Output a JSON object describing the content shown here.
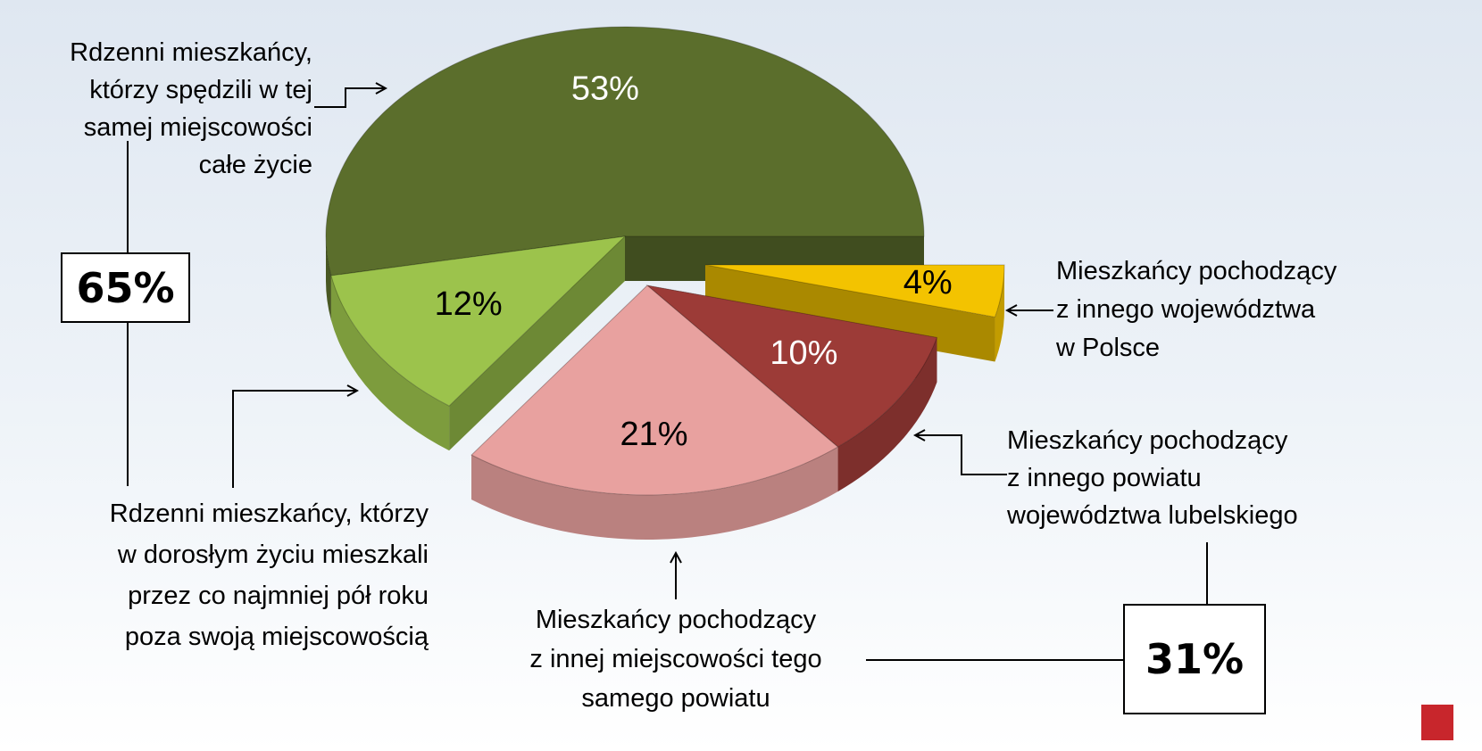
{
  "chart_data": {
    "type": "pie",
    "categories": [
      "Rdzenni mieszkańcy,\nktórzy spędzili w tej\nsamej miejscowości\ncałe życie",
      "Rdzenni mieszkańcy, którzy\nw dorosłym życiu mieszkali\nprzez co najmniej pół roku\npoza swoją miejscowością",
      "Mieszkańcy pochodzący\nz innej miejscowości tego\nsamego powiatu",
      "Mieszkańcy pochodzący\nz innego powiatu\nwojewództwa lubelskiego",
      "Mieszkańcy pochodzący\nz innego województwa\nw Polsce"
    ],
    "values": [
      53,
      12,
      21,
      10,
      4
    ],
    "value_labels": [
      "53%",
      "12%",
      "21%",
      "10%",
      "4%"
    ],
    "colors": [
      "#5b6e2c",
      "#9cc34c",
      "#e8a19f",
      "#9c3b37",
      "#f3c300"
    ],
    "group_totals": {
      "values": [
        65,
        31
      ],
      "value_labels": [
        "65%",
        "31%"
      ]
    }
  }
}
